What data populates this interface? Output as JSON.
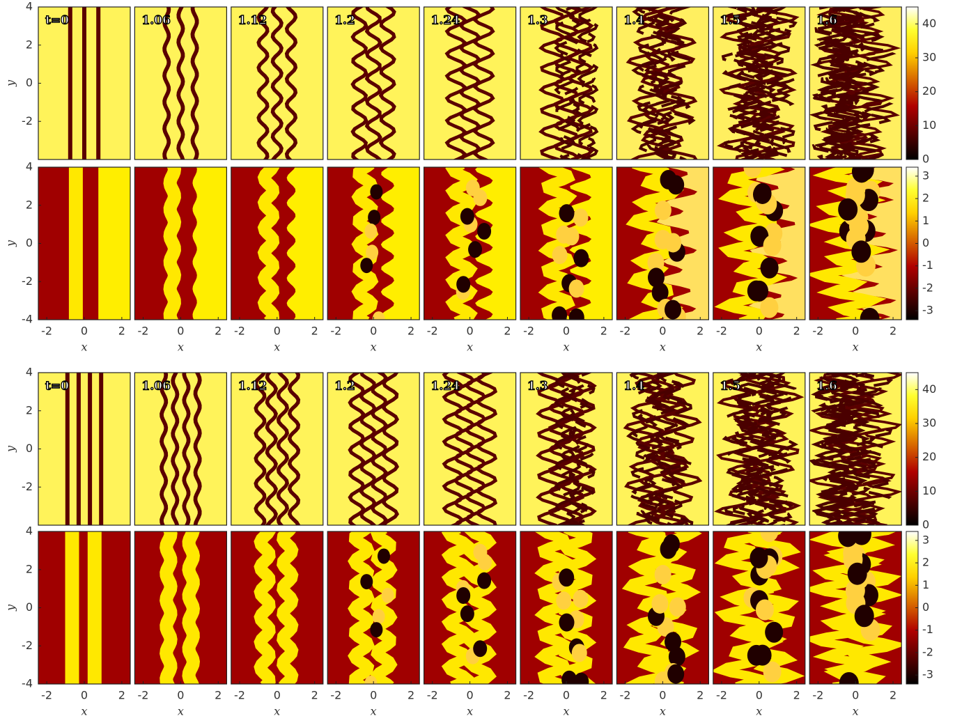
{
  "chart_data": [
    {
      "type": "heatmap",
      "panel_labels": [
        "t=0",
        "1.06",
        "1.12",
        "1.2",
        "1.24",
        "1.3",
        "1.4",
        "1.5",
        "1.6"
      ],
      "xlim": [
        -2.45,
        2.45
      ],
      "ylim": [
        -4,
        4
      ],
      "yticks": [
        4,
        2,
        0,
        -2
      ],
      "ylabel": "y",
      "colorbar": {
        "lim": [
          0,
          45
        ],
        "ticks": [
          0,
          10,
          20,
          30,
          40
        ]
      }
    },
    {
      "type": "heatmap",
      "xlim": [
        -2.45,
        2.45
      ],
      "ylim": [
        -4,
        4
      ],
      "xticks": [
        -2,
        0,
        2
      ],
      "yticks": [
        4,
        2,
        0,
        -2,
        -4
      ],
      "xlabel": "x",
      "ylabel": "y",
      "colorbar": {
        "lim": [
          -3.4,
          3.4
        ],
        "ticks": [
          3,
          2,
          1,
          0,
          -1,
          -2,
          -3
        ]
      }
    },
    {
      "type": "heatmap",
      "panel_labels": [
        "t=0",
        "1.06",
        "1.12",
        "1.2",
        "1.24",
        "1.3",
        "1.4",
        "1.5",
        "1.6"
      ],
      "xlim": [
        -2.45,
        2.45
      ],
      "ylim": [
        -4,
        4
      ],
      "yticks": [
        4,
        2,
        0,
        -2
      ],
      "ylabel": "y",
      "colorbar": {
        "lim": [
          0,
          45
        ],
        "ticks": [
          0,
          10,
          20,
          30,
          40
        ]
      }
    },
    {
      "type": "heatmap",
      "xlim": [
        -2.45,
        2.45
      ],
      "ylim": [
        -4,
        4
      ],
      "xticks": [
        -2,
        0,
        2
      ],
      "yticks": [
        4,
        2,
        0,
        -2,
        -4
      ],
      "xlabel": "x",
      "ylabel": "y",
      "colorbar": {
        "lim": [
          -3.4,
          3.4
        ],
        "ticks": [
          3,
          2,
          1,
          0,
          -1,
          -2,
          -3
        ]
      }
    }
  ]
}
